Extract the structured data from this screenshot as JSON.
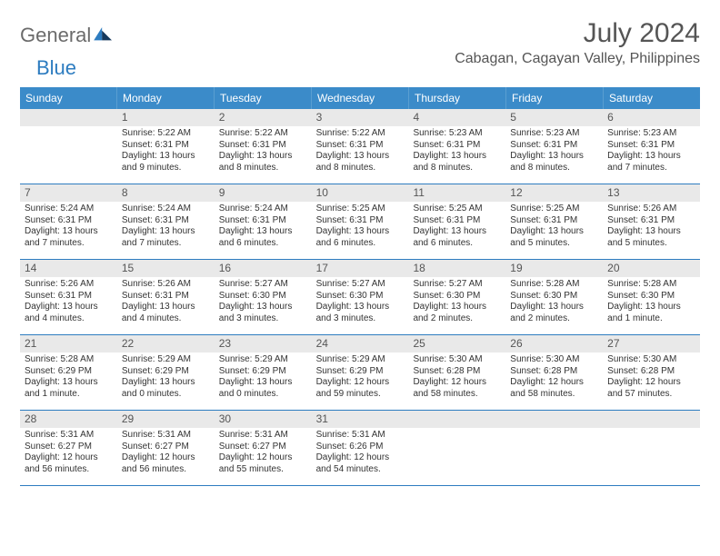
{
  "logo": {
    "gray": "General",
    "blue": "Blue"
  },
  "title": {
    "month": "July 2024",
    "location": "Cabagan, Cagayan Valley, Philippines"
  },
  "day_headers": [
    "Sunday",
    "Monday",
    "Tuesday",
    "Wednesday",
    "Thursday",
    "Friday",
    "Saturday"
  ],
  "colors": {
    "header_bg": "#3b8bc9",
    "header_text": "#ffffff",
    "daynum_bg": "#e9e9e9",
    "week_border": "#2d7cc0",
    "logo_gray": "#6b6b6b",
    "logo_blue": "#2d7cc0",
    "body_text": "#333333",
    "title_text": "#555555"
  },
  "weeks": [
    [
      null,
      {
        "num": "1",
        "sr": "Sunrise: 5:22 AM",
        "ss": "Sunset: 6:31 PM",
        "dl": "Daylight: 13 hours and 9 minutes."
      },
      {
        "num": "2",
        "sr": "Sunrise: 5:22 AM",
        "ss": "Sunset: 6:31 PM",
        "dl": "Daylight: 13 hours and 8 minutes."
      },
      {
        "num": "3",
        "sr": "Sunrise: 5:22 AM",
        "ss": "Sunset: 6:31 PM",
        "dl": "Daylight: 13 hours and 8 minutes."
      },
      {
        "num": "4",
        "sr": "Sunrise: 5:23 AM",
        "ss": "Sunset: 6:31 PM",
        "dl": "Daylight: 13 hours and 8 minutes."
      },
      {
        "num": "5",
        "sr": "Sunrise: 5:23 AM",
        "ss": "Sunset: 6:31 PM",
        "dl": "Daylight: 13 hours and 8 minutes."
      },
      {
        "num": "6",
        "sr": "Sunrise: 5:23 AM",
        "ss": "Sunset: 6:31 PM",
        "dl": "Daylight: 13 hours and 7 minutes."
      }
    ],
    [
      {
        "num": "7",
        "sr": "Sunrise: 5:24 AM",
        "ss": "Sunset: 6:31 PM",
        "dl": "Daylight: 13 hours and 7 minutes."
      },
      {
        "num": "8",
        "sr": "Sunrise: 5:24 AM",
        "ss": "Sunset: 6:31 PM",
        "dl": "Daylight: 13 hours and 7 minutes."
      },
      {
        "num": "9",
        "sr": "Sunrise: 5:24 AM",
        "ss": "Sunset: 6:31 PM",
        "dl": "Daylight: 13 hours and 6 minutes."
      },
      {
        "num": "10",
        "sr": "Sunrise: 5:25 AM",
        "ss": "Sunset: 6:31 PM",
        "dl": "Daylight: 13 hours and 6 minutes."
      },
      {
        "num": "11",
        "sr": "Sunrise: 5:25 AM",
        "ss": "Sunset: 6:31 PM",
        "dl": "Daylight: 13 hours and 6 minutes."
      },
      {
        "num": "12",
        "sr": "Sunrise: 5:25 AM",
        "ss": "Sunset: 6:31 PM",
        "dl": "Daylight: 13 hours and 5 minutes."
      },
      {
        "num": "13",
        "sr": "Sunrise: 5:26 AM",
        "ss": "Sunset: 6:31 PM",
        "dl": "Daylight: 13 hours and 5 minutes."
      }
    ],
    [
      {
        "num": "14",
        "sr": "Sunrise: 5:26 AM",
        "ss": "Sunset: 6:31 PM",
        "dl": "Daylight: 13 hours and 4 minutes."
      },
      {
        "num": "15",
        "sr": "Sunrise: 5:26 AM",
        "ss": "Sunset: 6:31 PM",
        "dl": "Daylight: 13 hours and 4 minutes."
      },
      {
        "num": "16",
        "sr": "Sunrise: 5:27 AM",
        "ss": "Sunset: 6:30 PM",
        "dl": "Daylight: 13 hours and 3 minutes."
      },
      {
        "num": "17",
        "sr": "Sunrise: 5:27 AM",
        "ss": "Sunset: 6:30 PM",
        "dl": "Daylight: 13 hours and 3 minutes."
      },
      {
        "num": "18",
        "sr": "Sunrise: 5:27 AM",
        "ss": "Sunset: 6:30 PM",
        "dl": "Daylight: 13 hours and 2 minutes."
      },
      {
        "num": "19",
        "sr": "Sunrise: 5:28 AM",
        "ss": "Sunset: 6:30 PM",
        "dl": "Daylight: 13 hours and 2 minutes."
      },
      {
        "num": "20",
        "sr": "Sunrise: 5:28 AM",
        "ss": "Sunset: 6:30 PM",
        "dl": "Daylight: 13 hours and 1 minute."
      }
    ],
    [
      {
        "num": "21",
        "sr": "Sunrise: 5:28 AM",
        "ss": "Sunset: 6:29 PM",
        "dl": "Daylight: 13 hours and 1 minute."
      },
      {
        "num": "22",
        "sr": "Sunrise: 5:29 AM",
        "ss": "Sunset: 6:29 PM",
        "dl": "Daylight: 13 hours and 0 minutes."
      },
      {
        "num": "23",
        "sr": "Sunrise: 5:29 AM",
        "ss": "Sunset: 6:29 PM",
        "dl": "Daylight: 13 hours and 0 minutes."
      },
      {
        "num": "24",
        "sr": "Sunrise: 5:29 AM",
        "ss": "Sunset: 6:29 PM",
        "dl": "Daylight: 12 hours and 59 minutes."
      },
      {
        "num": "25",
        "sr": "Sunrise: 5:30 AM",
        "ss": "Sunset: 6:28 PM",
        "dl": "Daylight: 12 hours and 58 minutes."
      },
      {
        "num": "26",
        "sr": "Sunrise: 5:30 AM",
        "ss": "Sunset: 6:28 PM",
        "dl": "Daylight: 12 hours and 58 minutes."
      },
      {
        "num": "27",
        "sr": "Sunrise: 5:30 AM",
        "ss": "Sunset: 6:28 PM",
        "dl": "Daylight: 12 hours and 57 minutes."
      }
    ],
    [
      {
        "num": "28",
        "sr": "Sunrise: 5:31 AM",
        "ss": "Sunset: 6:27 PM",
        "dl": "Daylight: 12 hours and 56 minutes."
      },
      {
        "num": "29",
        "sr": "Sunrise: 5:31 AM",
        "ss": "Sunset: 6:27 PM",
        "dl": "Daylight: 12 hours and 56 minutes."
      },
      {
        "num": "30",
        "sr": "Sunrise: 5:31 AM",
        "ss": "Sunset: 6:27 PM",
        "dl": "Daylight: 12 hours and 55 minutes."
      },
      {
        "num": "31",
        "sr": "Sunrise: 5:31 AM",
        "ss": "Sunset: 6:26 PM",
        "dl": "Daylight: 12 hours and 54 minutes."
      },
      null,
      null,
      null
    ]
  ]
}
